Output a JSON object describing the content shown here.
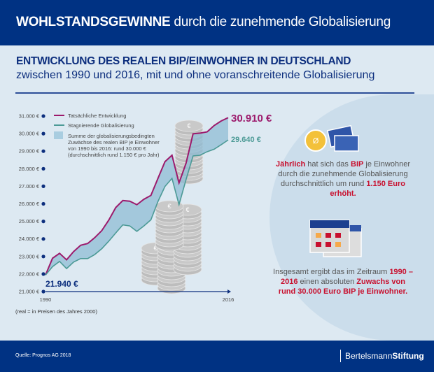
{
  "header": {
    "title_bold": "WOHLSTANDSGEWINNE",
    "title_rest": "durch die zunehmende Globalisierung"
  },
  "subtitle": {
    "line1": "ENTWICKLUNG DES REALEN BIP/EINWOHNER IN DEUTSCHLAND",
    "line2": "zwischen 1990 und 2016, mit und ohne voranschreitende Globalisierung"
  },
  "chart_data": {
    "type": "line",
    "x": [
      1990,
      1991,
      1992,
      1993,
      1994,
      1995,
      1996,
      1997,
      1998,
      1999,
      2000,
      2001,
      2002,
      2003,
      2004,
      2005,
      2006,
      2007,
      2008,
      2009,
      2010,
      2011,
      2012,
      2013,
      2014,
      2015,
      2016
    ],
    "series": [
      {
        "name": "Tatsächliche Entwicklung",
        "color": "#9c1a6c",
        "values": [
          21940,
          22900,
          23180,
          22810,
          23280,
          23640,
          23740,
          24070,
          24470,
          25070,
          25790,
          26190,
          26150,
          25950,
          26260,
          26480,
          27450,
          28400,
          28770,
          27190,
          28310,
          29990,
          30030,
          30100,
          30460,
          30720,
          30910
        ]
      },
      {
        "name": "Stagnierende Globalisierung",
        "color": "#4c9a96",
        "values": [
          21940,
          22420,
          22720,
          22310,
          22680,
          22880,
          22880,
          23110,
          23440,
          23870,
          24340,
          24800,
          24740,
          24430,
          24740,
          25090,
          26130,
          26990,
          27450,
          25950,
          27380,
          28730,
          28770,
          28970,
          29110,
          29370,
          29640
        ]
      }
    ],
    "area_legend": [
      "Summe der globalisierungsbedingten",
      "Zuwächse des realen BIP je Einwohner",
      "von 1990 bis 2016: rund 30.000 €",
      "(durchschnittlich rund 1.150 € pro Jahr)"
    ],
    "area_color": "#8fbcd4",
    "ylim": [
      21000,
      31000
    ],
    "yticks": [
      "21.000 €",
      "22.000 €",
      "23.000 €",
      "24.000 €",
      "25.000 €",
      "26.000 €",
      "27.000 €",
      "28.000 €",
      "29.000 €",
      "30.000 €",
      "31.000 €"
    ],
    "xticks": [
      "1990",
      "2016"
    ],
    "labels": {
      "start": "21.940 €",
      "end_actual": "30.910 €",
      "end_stagnant": "29.640 €"
    },
    "grid": false
  },
  "info1": {
    "a": "Jährlich",
    "b": " hat sich das ",
    "c": "BIP",
    "d": " je Einwohner durch die zunehmende Globalisierung durchschnittlich um rund ",
    "e": "1.150 Euro erhöht."
  },
  "info2": {
    "a": "Insgesamt ergibt das im Zeitraum ",
    "b": "1990 – 2016",
    "c": " einen absoluten ",
    "d": "Zuwachs von rund 30.000 Euro BIP je Einwohner."
  },
  "note": "(real = in Preisen des Jahres 2000)",
  "footer": {
    "source": "Quelle: Prognos AG 2018",
    "logo_regular": "Bertelsmann",
    "logo_bold": "Stiftung"
  }
}
